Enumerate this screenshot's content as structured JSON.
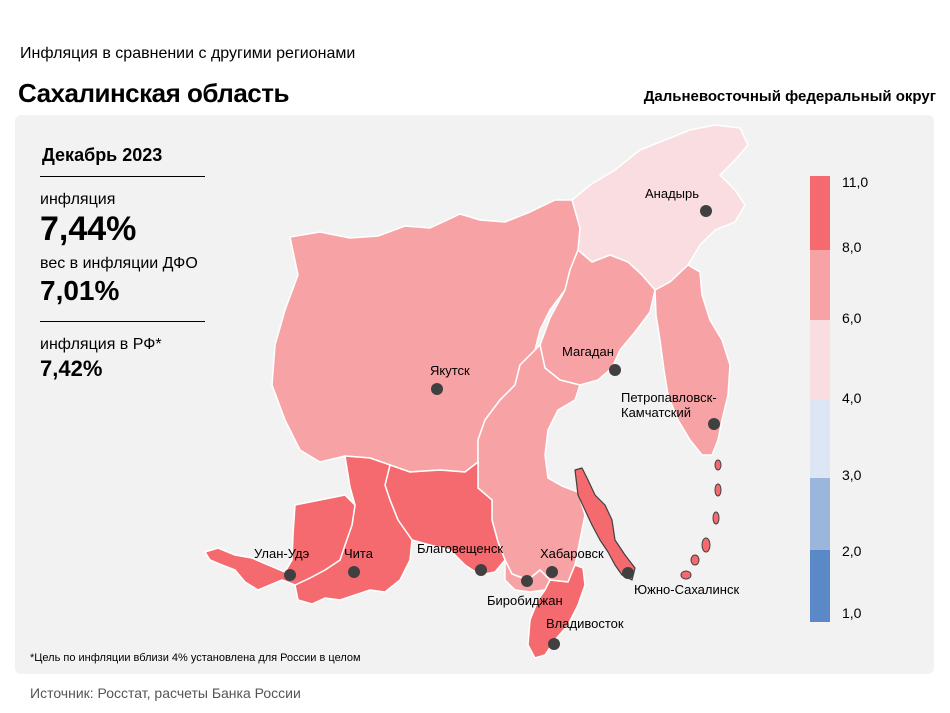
{
  "header": {
    "supertitle": "Инфляция  в сравнении  с другими  регионами",
    "title": "Сахалинская область",
    "district": "Дальневосточный федеральный округ"
  },
  "stats": {
    "date": "Декабрь 2023",
    "inflation_label": "инфляция",
    "inflation_value": "7,44%",
    "weight_label": "вес в инфляции  ДФО",
    "weight_value": "7,01%",
    "rf_label": "инфляция  в РФ*",
    "rf_value": "7,42%"
  },
  "footnote": "*Цель по инфляции вблизи 4% установлена для России в целом",
  "source": "Источник: Росстат, расчеты  Банка  России",
  "legend": {
    "ticks": [
      "11,0",
      "8,0",
      "6,0",
      "4,0",
      "3,0",
      "2,0",
      "1,0"
    ],
    "colors": [
      "#f46a6e",
      "#f7a3a6",
      "#f9dde0",
      "#dce6f4",
      "#9bb6db",
      "#5b89c7"
    ]
  },
  "colors": {
    "high": "#f46a6e",
    "mid": "#f7a3a6",
    "low": "#f9dde0",
    "border": "#ffffff",
    "city_dot": "#404040"
  },
  "cities": [
    {
      "name": "Анадырь"
    },
    {
      "name": "Магадан"
    },
    {
      "name": "Якутск"
    },
    {
      "name": "Петропавловск-",
      "name2": "Камчатский"
    },
    {
      "name": "Улан-Удэ"
    },
    {
      "name": "Чита"
    },
    {
      "name": "Благовещенск"
    },
    {
      "name": "Хабаровск"
    },
    {
      "name": "Биробиджан"
    },
    {
      "name": "Владивосток"
    },
    {
      "name": "Южно-Сахалинск"
    }
  ]
}
